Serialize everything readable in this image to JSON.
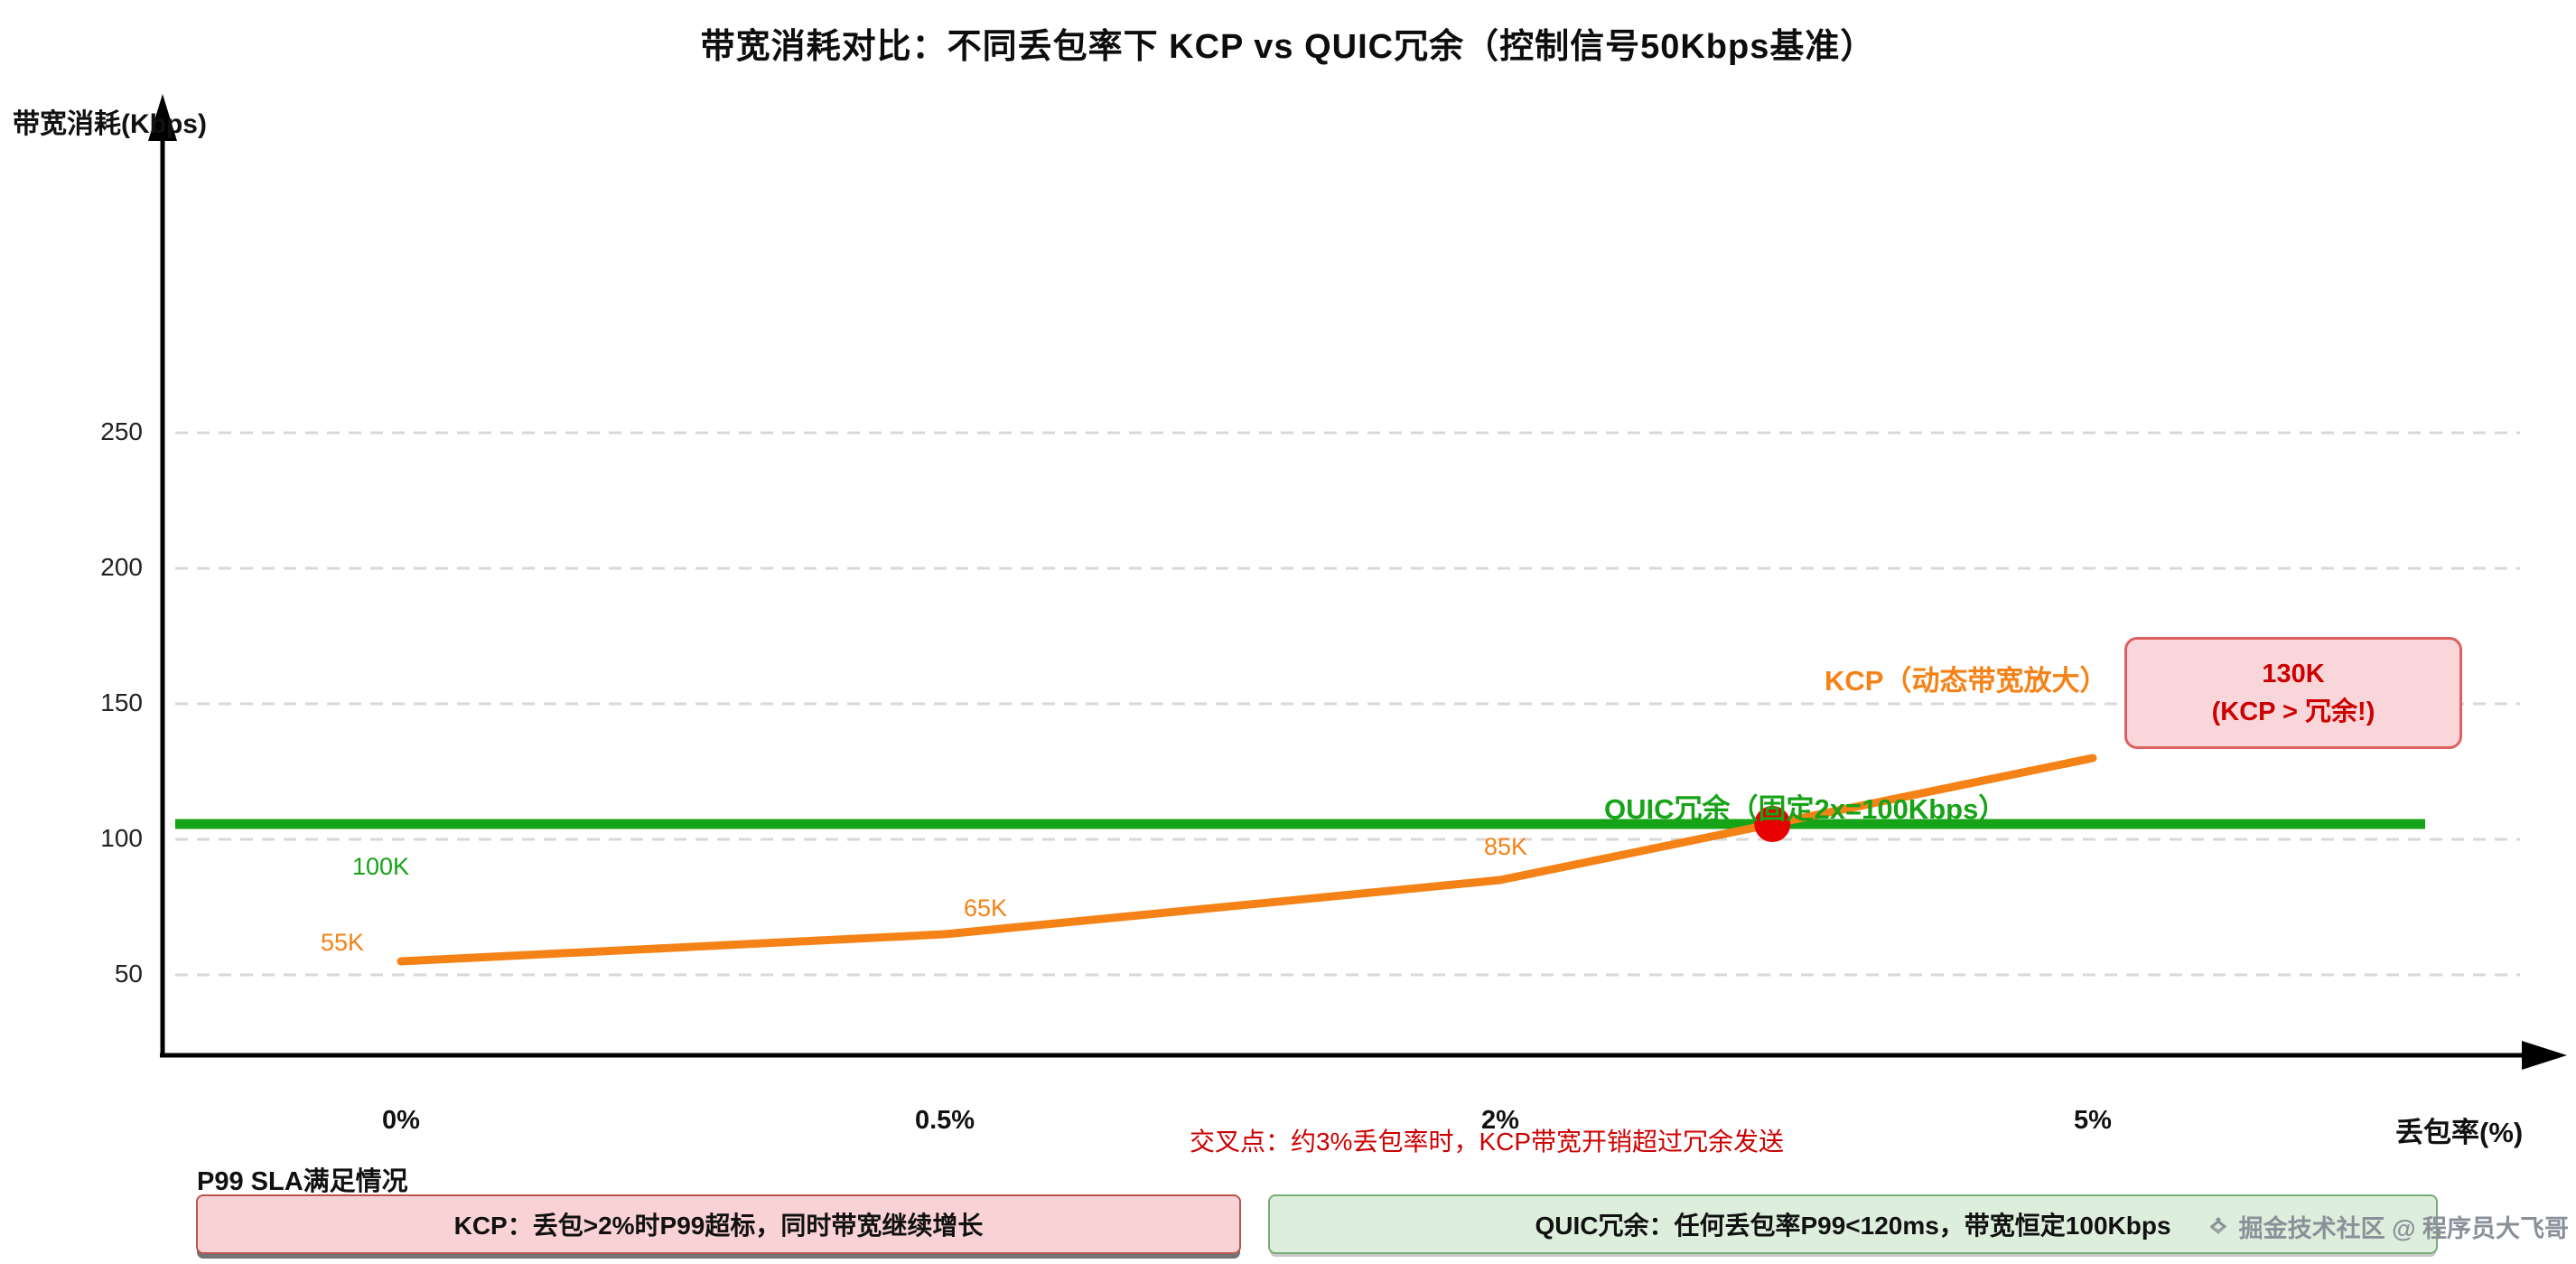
{
  "title": "带宽消耗对比：不同丢包率下 KCP vs QUIC冗余（控制信号50Kbps基准）",
  "chart_data": {
    "type": "line",
    "title": "带宽消耗对比：不同丢包率下 KCP vs QUIC冗余（控制信号50Kbps基准）",
    "xlabel": "丢包率(%)",
    "ylabel": "带宽消耗(Kbps)",
    "x_tick_labels": [
      "0%",
      "0.5%",
      "2%",
      "5%"
    ],
    "y_ticks": [
      250,
      200,
      150,
      100,
      50
    ],
    "ylim": [
      0,
      300
    ],
    "grid": "horizontal dashed",
    "legend_position": "inline labels on lines",
    "series": [
      {
        "name": "KCP（动态带宽放大）",
        "type": "line",
        "color": "#f58216",
        "x": [
          "0%",
          "0.5%",
          "2%",
          "5%"
        ],
        "values": [
          55,
          65,
          85,
          130
        ],
        "point_labels": [
          "55K",
          "65K",
          "85K",
          ""
        ]
      },
      {
        "name": "QUIC冗余（固定2x=100Kbps）",
        "type": "constant-line",
        "color": "#17a317",
        "value": 100,
        "label": "100K"
      }
    ],
    "annotations": [
      {
        "id": "crossover_dot",
        "type": "point",
        "x_label": "约3%",
        "color": "#e60000"
      },
      {
        "id": "callout_130k",
        "type": "box",
        "line1": "130K",
        "line2": "(KCP > 冗余!)",
        "text_color": "#cc0000",
        "fill": "#f8d6d9",
        "border": "#df6060"
      },
      {
        "id": "crossover_note",
        "type": "text",
        "text": "交叉点：约3%丢包率时，KCP带宽开销超过冗余发送",
        "color": "#cc0000"
      }
    ]
  },
  "footer": {
    "heading": "P99 SLA满足情况",
    "kcp_box": {
      "text": "KCP：丢包>2%时P99超标，同时带宽继续增长",
      "fill": "#f8d2d5",
      "border": "#b85450"
    },
    "quic_box": {
      "text": "QUIC冗余：任何丢包率P99<120ms，带宽恒定100Kbps",
      "fill": "#ddeedd",
      "border": "#79ab79"
    }
  },
  "watermark": "掘金技术社区 @ 程序员大飞哥"
}
